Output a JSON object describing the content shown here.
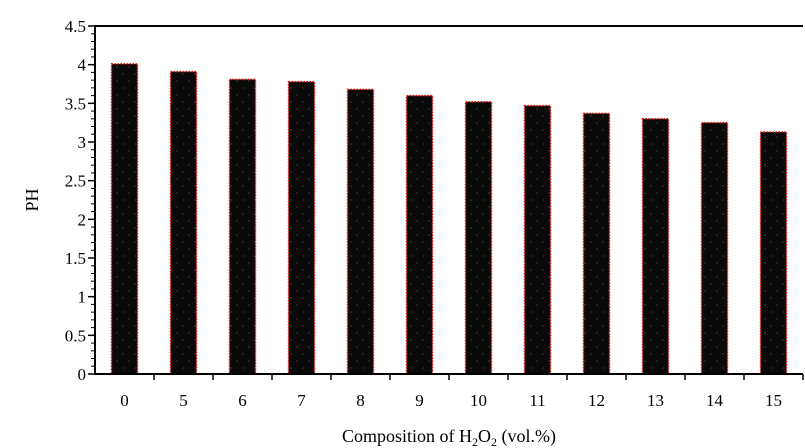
{
  "chart_data": {
    "type": "bar",
    "categories": [
      "0",
      "5",
      "6",
      "7",
      "8",
      "9",
      "10",
      "11",
      "12",
      "13",
      "14",
      "15"
    ],
    "values": [
      4.01,
      3.91,
      3.81,
      3.78,
      3.68,
      3.6,
      3.52,
      3.47,
      3.37,
      3.3,
      3.25,
      3.13
    ],
    "title": "",
    "xlabel": "Composition of H2O2 (vol.%)",
    "xlabel_parts": {
      "pre": "Composition of H",
      "sub1": "2",
      "mid": "O",
      "sub2": "2",
      "post": " (vol.%)"
    },
    "ylabel": "PH",
    "ylim": [
      0,
      4.5
    ],
    "yticks": [
      "0",
      "0.5",
      "1",
      "1.5",
      "2",
      "2.5",
      "3",
      "3.5",
      "4",
      "4.5"
    ],
    "grid": false,
    "legend": "none",
    "colors": {
      "bar_fill": "#0a0a0a",
      "bar_edge": "#e3120b",
      "axis": "#000000"
    }
  }
}
